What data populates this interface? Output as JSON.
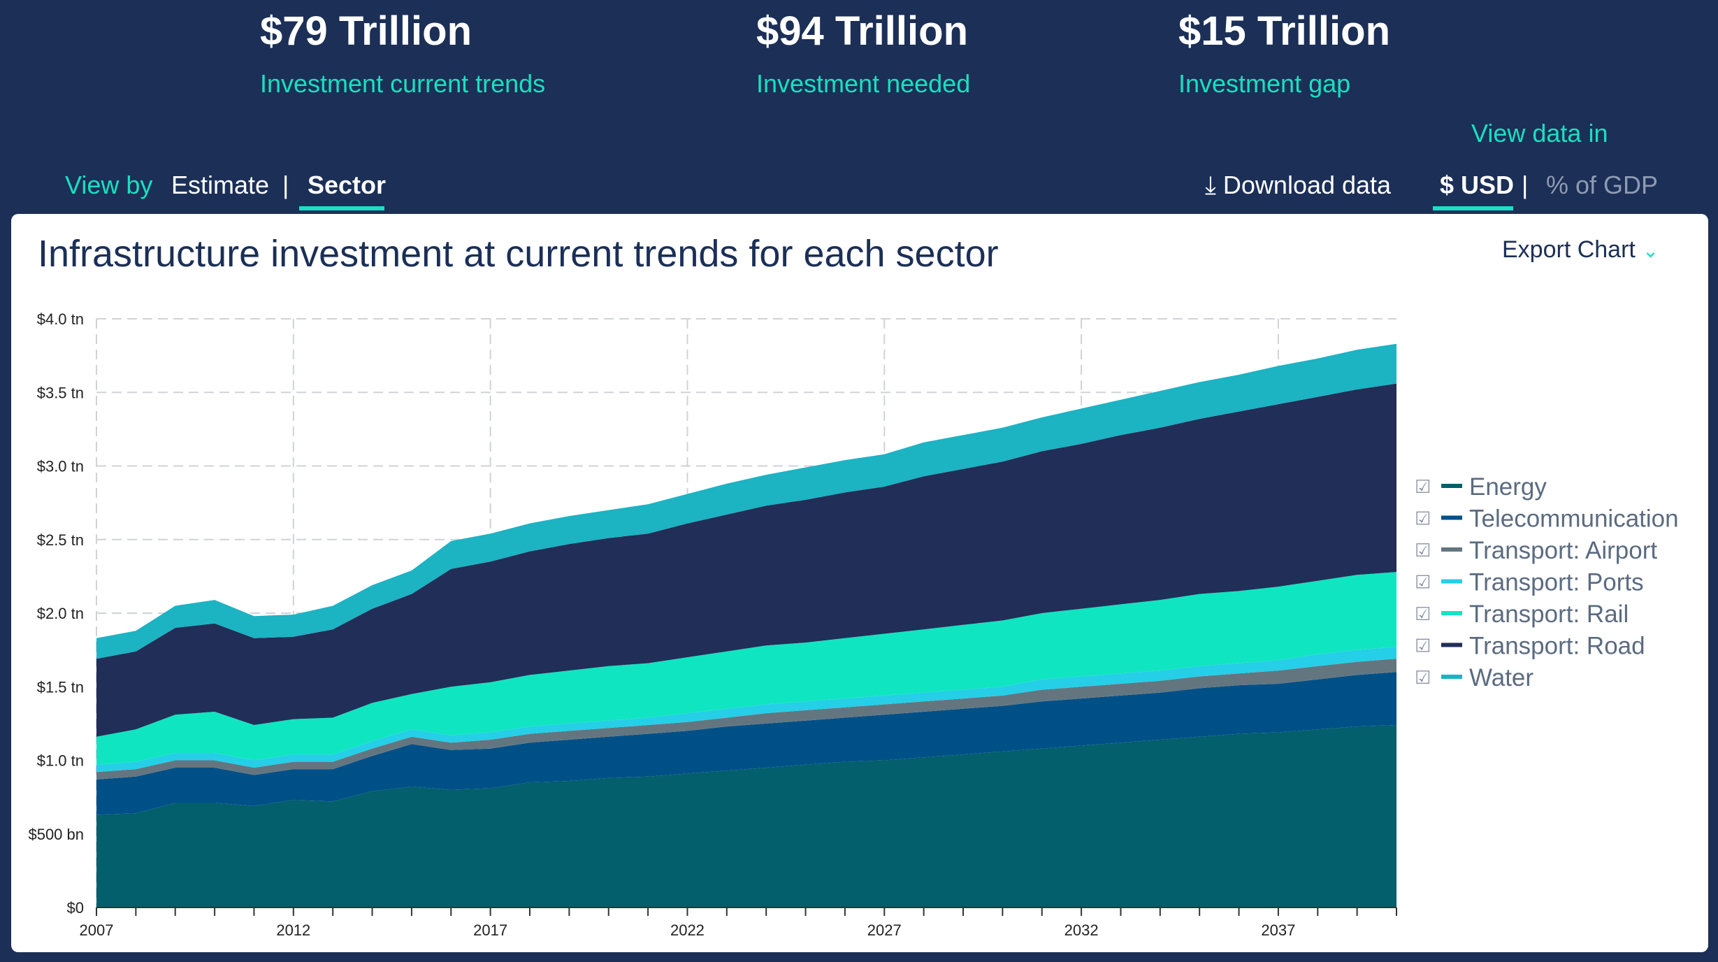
{
  "stats": [
    {
      "value": "$79 Trillion",
      "label": "Investment current trends"
    },
    {
      "value": "$94 Trillion",
      "label": "Investment needed"
    },
    {
      "value": "$15 Trillion",
      "label": "Investment gap"
    }
  ],
  "toolbar": {
    "view_by": "View by",
    "estimate": "Estimate",
    "separator": "|",
    "sector": "Sector",
    "download": "⤓ Download data",
    "view_data_in": "View data in",
    "usd": "$ USD",
    "gdp": "% of GDP"
  },
  "card": {
    "title": "Infrastructure investment at current trends for each sector",
    "export": "Export Chart",
    "export_icon": "chevron-down-icon"
  },
  "chart_data": {
    "type": "area",
    "stacked": true,
    "title": "Infrastructure investment at current trends for each sector",
    "x": [
      2007,
      2008,
      2009,
      2010,
      2011,
      2012,
      2013,
      2014,
      2015,
      2016,
      2017,
      2018,
      2019,
      2020,
      2021,
      2022,
      2023,
      2024,
      2025,
      2026,
      2027,
      2028,
      2029,
      2030,
      2031,
      2032,
      2033,
      2034,
      2035,
      2036,
      2037,
      2038,
      2039,
      2040
    ],
    "x_ticks": [
      "2007",
      "2012",
      "2017",
      "2022",
      "2027",
      "2032",
      "2037"
    ],
    "y_ticks": [
      "$0",
      "$500 bn",
      "$1.0 tn",
      "$1.5 tn",
      "$2.0 tn",
      "$2.5 tn",
      "$3.0 tn",
      "$3.5 tn",
      "$4.0 tn"
    ],
    "ylim": [
      0,
      4.0
    ],
    "unit": "USD trillion",
    "grid": true,
    "legend_position": "right",
    "series": [
      {
        "name": "Energy",
        "color": "#035f6b",
        "values": [
          0.63,
          0.64,
          0.71,
          0.71,
          0.69,
          0.73,
          0.72,
          0.79,
          0.82,
          0.8,
          0.81,
          0.85,
          0.86,
          0.88,
          0.89,
          0.91,
          0.93,
          0.95,
          0.97,
          0.99,
          1.0,
          1.02,
          1.04,
          1.06,
          1.08,
          1.1,
          1.12,
          1.14,
          1.16,
          1.18,
          1.19,
          1.21,
          1.23,
          1.24
        ]
      },
      {
        "name": "Telecommunication",
        "color": "#005088",
        "values": [
          0.24,
          0.25,
          0.24,
          0.24,
          0.21,
          0.21,
          0.22,
          0.24,
          0.29,
          0.27,
          0.27,
          0.27,
          0.28,
          0.28,
          0.29,
          0.29,
          0.3,
          0.3,
          0.3,
          0.3,
          0.31,
          0.31,
          0.31,
          0.31,
          0.32,
          0.32,
          0.32,
          0.32,
          0.33,
          0.33,
          0.33,
          0.34,
          0.35,
          0.36
        ]
      },
      {
        "name": "Transport: Airport",
        "color": "#637680",
        "values": [
          0.05,
          0.05,
          0.05,
          0.05,
          0.05,
          0.05,
          0.05,
          0.05,
          0.05,
          0.05,
          0.06,
          0.06,
          0.06,
          0.06,
          0.06,
          0.06,
          0.06,
          0.07,
          0.07,
          0.07,
          0.07,
          0.07,
          0.07,
          0.07,
          0.08,
          0.08,
          0.08,
          0.08,
          0.08,
          0.08,
          0.09,
          0.09,
          0.09,
          0.09
        ]
      },
      {
        "name": "Transport: Ports",
        "color": "#25cfe7",
        "values": [
          0.05,
          0.05,
          0.05,
          0.05,
          0.05,
          0.05,
          0.05,
          0.05,
          0.05,
          0.05,
          0.05,
          0.05,
          0.05,
          0.05,
          0.05,
          0.06,
          0.06,
          0.06,
          0.06,
          0.06,
          0.06,
          0.06,
          0.06,
          0.06,
          0.07,
          0.07,
          0.07,
          0.07,
          0.07,
          0.07,
          0.07,
          0.08,
          0.08,
          0.08
        ]
      },
      {
        "name": "Transport: Rail",
        "color": "#10e5c1",
        "values": [
          0.19,
          0.22,
          0.26,
          0.28,
          0.24,
          0.24,
          0.25,
          0.26,
          0.24,
          0.33,
          0.34,
          0.35,
          0.36,
          0.37,
          0.37,
          0.38,
          0.39,
          0.4,
          0.4,
          0.41,
          0.42,
          0.43,
          0.44,
          0.45,
          0.45,
          0.46,
          0.47,
          0.48,
          0.49,
          0.49,
          0.5,
          0.5,
          0.51,
          0.51
        ]
      },
      {
        "name": "Transport: Road",
        "color": "#212e57",
        "values": [
          0.53,
          0.53,
          0.59,
          0.6,
          0.59,
          0.56,
          0.6,
          0.64,
          0.68,
          0.8,
          0.82,
          0.84,
          0.86,
          0.87,
          0.88,
          0.91,
          0.93,
          0.95,
          0.97,
          0.99,
          1.0,
          1.04,
          1.06,
          1.08,
          1.1,
          1.12,
          1.15,
          1.17,
          1.19,
          1.22,
          1.24,
          1.25,
          1.26,
          1.28
        ]
      },
      {
        "name": "Water",
        "color": "#1cb3c3",
        "values": [
          0.14,
          0.14,
          0.15,
          0.16,
          0.15,
          0.15,
          0.16,
          0.16,
          0.16,
          0.19,
          0.19,
          0.19,
          0.19,
          0.19,
          0.2,
          0.2,
          0.21,
          0.21,
          0.22,
          0.22,
          0.22,
          0.23,
          0.23,
          0.23,
          0.23,
          0.24,
          0.24,
          0.25,
          0.25,
          0.25,
          0.26,
          0.26,
          0.27,
          0.27
        ]
      }
    ]
  }
}
